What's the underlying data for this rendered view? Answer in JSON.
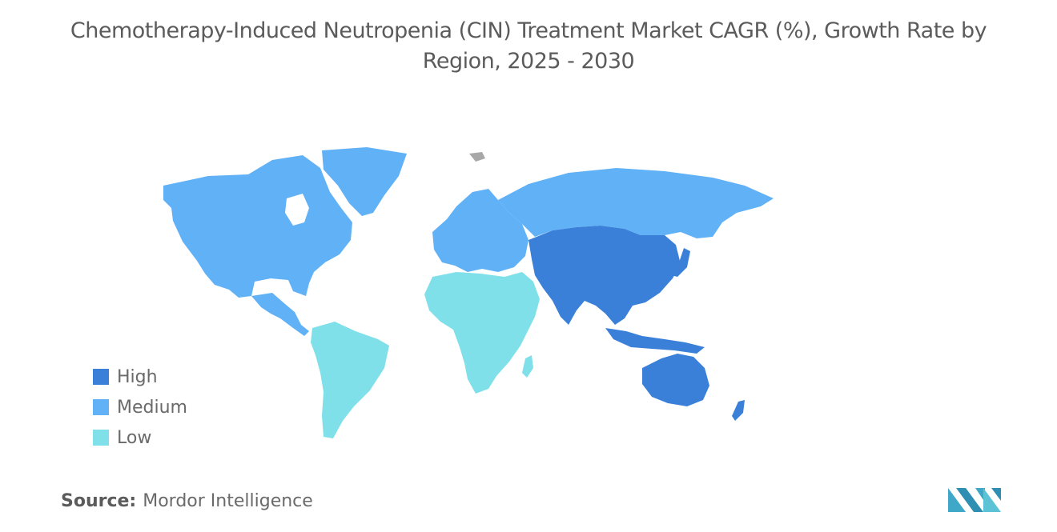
{
  "title": {
    "line1": "Chemotherapy-Induced Neutropenia (CIN) Treatment Market CAGR (%), Growth Rate by",
    "line2": "Region, 2025 - 2030"
  },
  "legend": {
    "items": [
      {
        "label": "High",
        "color": "#3a80d9"
      },
      {
        "label": "Medium",
        "color": "#61b1f7"
      },
      {
        "label": "Low",
        "color": "#7fe0ea"
      }
    ]
  },
  "map_regions": [
    {
      "region": "North America",
      "level": "Medium"
    },
    {
      "region": "Europe",
      "level": "Medium"
    },
    {
      "region": "Russia",
      "level": "Medium"
    },
    {
      "region": "Asia-Pacific",
      "level": "High"
    },
    {
      "region": "South America",
      "level": "Low"
    },
    {
      "region": "Middle East and Africa",
      "level": "Low"
    }
  ],
  "colors": {
    "no_data": "#a8a8a8",
    "logo": "#3fa7c7"
  },
  "source": {
    "label": "Source:",
    "text": "Mordor Intelligence"
  }
}
